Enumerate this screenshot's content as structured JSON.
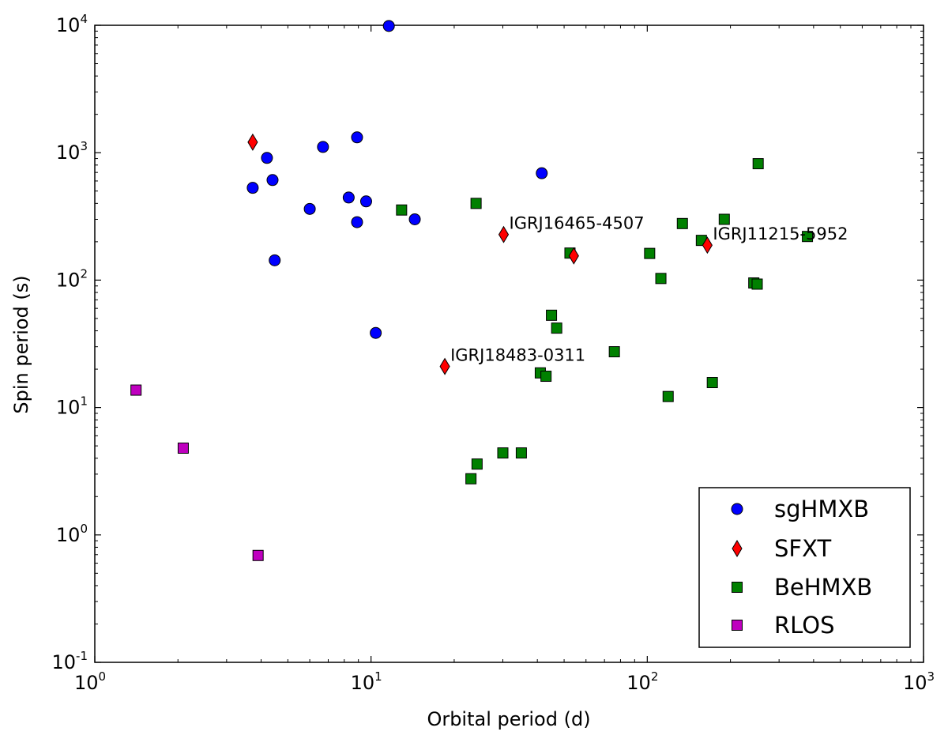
{
  "chart_data": {
    "type": "scatter",
    "xscale": "log",
    "yscale": "log",
    "xlabel": "Orbital period (d)",
    "ylabel": "Spin period (s)",
    "xlim": [
      1,
      1000
    ],
    "ylim": [
      0.1,
      10000
    ],
    "x_ticks": [
      {
        "base": "10",
        "exp": "0",
        "value": 1
      },
      {
        "base": "10",
        "exp": "1",
        "value": 10
      },
      {
        "base": "10",
        "exp": "2",
        "value": 100
      },
      {
        "base": "10",
        "exp": "3",
        "value": 1000
      }
    ],
    "y_ticks": [
      {
        "base": "10",
        "exp": "-1",
        "value": 0.1
      },
      {
        "base": "10",
        "exp": "0",
        "value": 1
      },
      {
        "base": "10",
        "exp": "1",
        "value": 10
      },
      {
        "base": "10",
        "exp": "2",
        "value": 100
      },
      {
        "base": "10",
        "exp": "3",
        "value": 1000
      },
      {
        "base": "10",
        "exp": "4",
        "value": 10000
      }
    ],
    "legend": {
      "position": "lower-right",
      "entries": [
        "sgHMXB",
        "SFXT",
        "BeHMXB",
        "RLOS"
      ]
    },
    "series": [
      {
        "name": "sgHMXB",
        "marker": "circle",
        "color": "#0000ff",
        "points": [
          [
            11.6,
            9880
          ],
          [
            3.73,
            530
          ],
          [
            4.2,
            910
          ],
          [
            4.4,
            610
          ],
          [
            4.48,
            143
          ],
          [
            6.0,
            362
          ],
          [
            6.7,
            1110
          ],
          [
            8.3,
            445
          ],
          [
            8.9,
            1320
          ],
          [
            8.9,
            285
          ],
          [
            9.6,
            415
          ],
          [
            10.4,
            38.5
          ],
          [
            14.4,
            300
          ],
          [
            41.5,
            690
          ]
        ]
      },
      {
        "name": "SFXT",
        "marker": "diamond",
        "color": "#ff0000",
        "points": [
          [
            3.73,
            1210
          ],
          [
            18.5,
            21
          ],
          [
            30.2,
            228
          ],
          [
            54.2,
            155
          ],
          [
            165,
            188
          ]
        ]
      },
      {
        "name": "BeHMXB",
        "marker": "square",
        "color": "#008000",
        "points": [
          [
            12.9,
            355
          ],
          [
            24.0,
            400
          ],
          [
            23.0,
            2.76
          ],
          [
            24.2,
            3.6
          ],
          [
            30.0,
            4.4
          ],
          [
            35.0,
            4.4
          ],
          [
            41.0,
            18.7
          ],
          [
            43.0,
            17.6
          ],
          [
            45.0,
            53
          ],
          [
            47.0,
            42
          ],
          [
            52.5,
            163
          ],
          [
            76.0,
            27.4
          ],
          [
            102,
            162
          ],
          [
            112,
            103
          ],
          [
            119,
            12.2
          ],
          [
            134,
            278
          ],
          [
            157,
            205
          ],
          [
            172,
            15.7
          ],
          [
            190,
            300
          ],
          [
            243,
            95
          ],
          [
            250,
            93
          ],
          [
            252,
            820
          ],
          [
            380,
            220
          ]
        ]
      },
      {
        "name": "RLOS",
        "marker": "square",
        "color": "#bf00bf",
        "points": [
          [
            1.41,
            13.7
          ],
          [
            2.09,
            4.8
          ],
          [
            3.9,
            0.69
          ]
        ]
      }
    ],
    "annotations": [
      {
        "text": "IGRJ16465-4507",
        "x": 30.2,
        "y": 228
      },
      {
        "text": "IGRJ11215-5952",
        "x": 165,
        "y": 188
      },
      {
        "text": "IGRJ18483-0311",
        "x": 18.5,
        "y": 21
      }
    ]
  }
}
